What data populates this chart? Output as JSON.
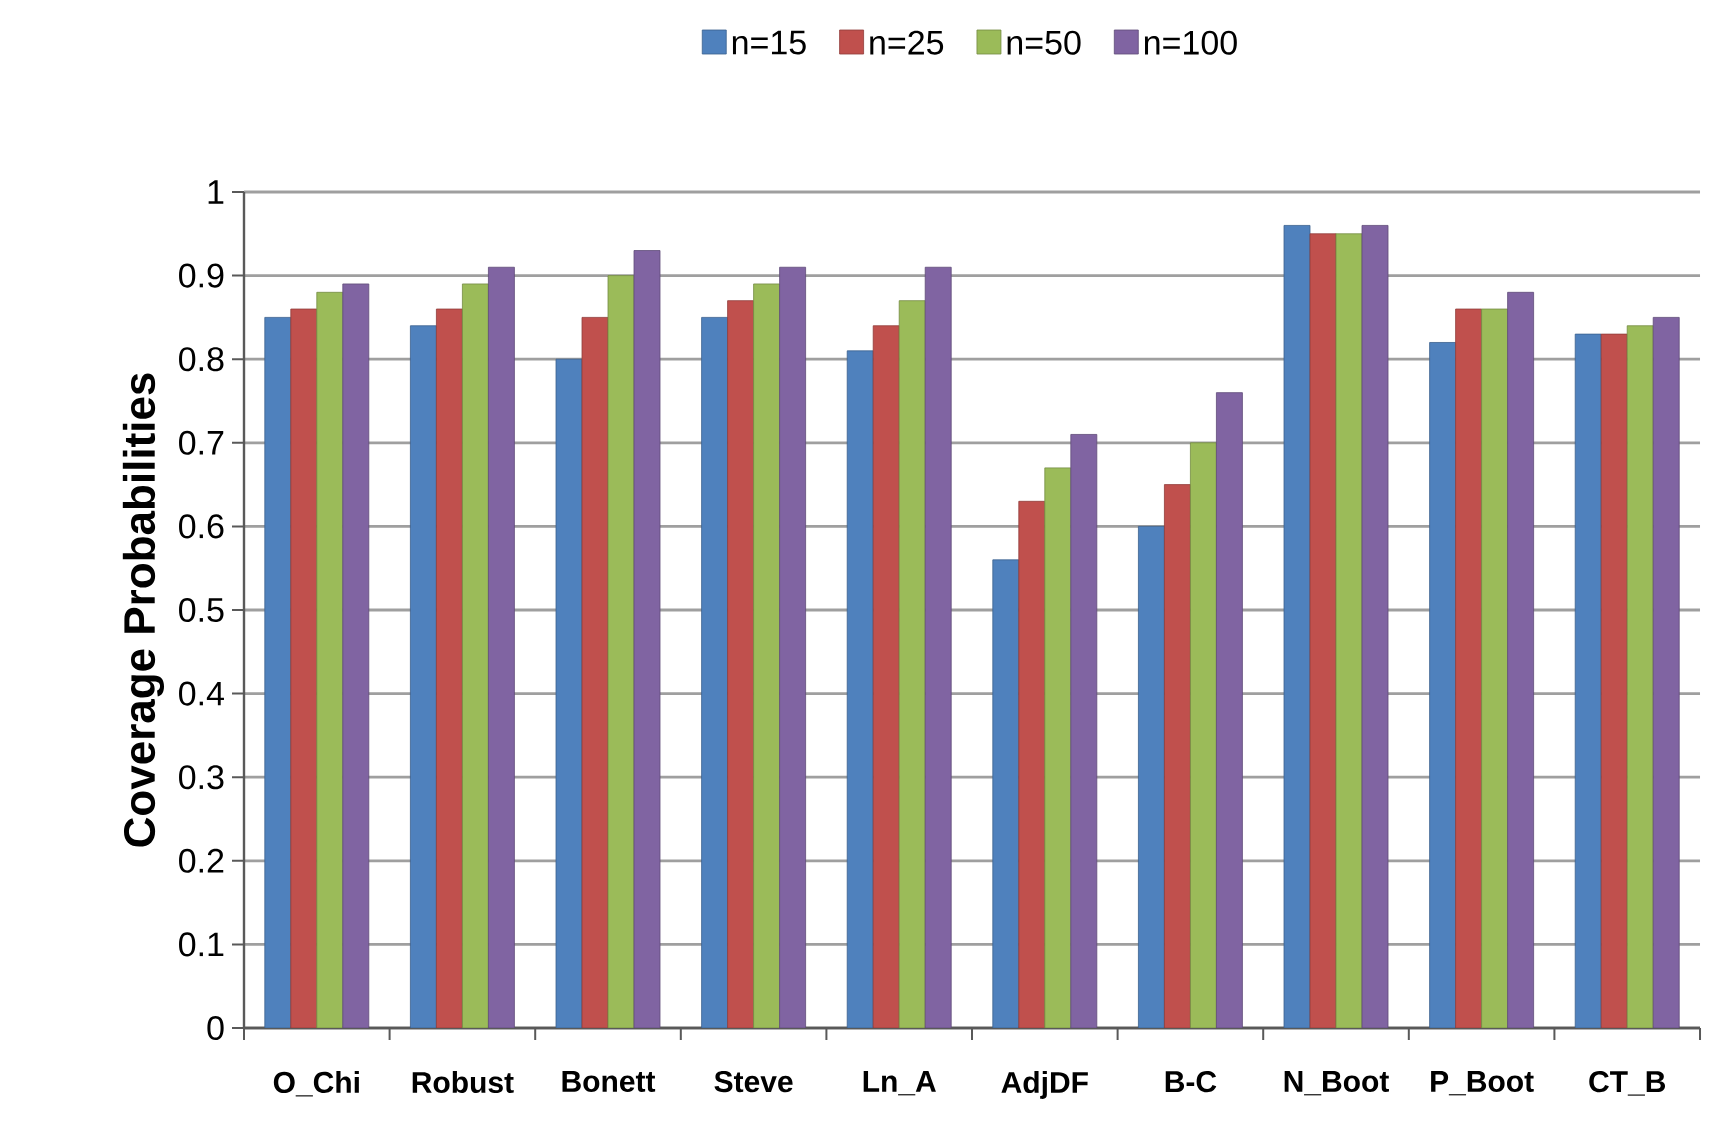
{
  "chart_data": {
    "type": "bar",
    "ylabel": "Coverage Probabilities",
    "categories": [
      "O_Chi",
      "Robust",
      "Bonett",
      "Steve",
      "Ln_A",
      "AdjDF",
      "B-C",
      "N_Boot",
      "P_Boot",
      "CT_B"
    ],
    "series": [
      {
        "name": "n=15",
        "color": "#4f81bd",
        "values": [
          0.85,
          0.84,
          0.8,
          0.85,
          0.81,
          0.56,
          0.6,
          0.96,
          0.82,
          0.83
        ]
      },
      {
        "name": "n=25",
        "color": "#c0504d",
        "values": [
          0.86,
          0.86,
          0.85,
          0.87,
          0.84,
          0.63,
          0.65,
          0.95,
          0.86,
          0.83
        ]
      },
      {
        "name": "n=50",
        "color": "#9bbb59",
        "values": [
          0.88,
          0.89,
          0.9,
          0.89,
          0.87,
          0.67,
          0.7,
          0.95,
          0.86,
          0.84
        ]
      },
      {
        "name": "n=100",
        "color": "#8064a2",
        "values": [
          0.89,
          0.91,
          0.93,
          0.91,
          0.91,
          0.71,
          0.76,
          0.96,
          0.88,
          0.85
        ]
      }
    ],
    "ylim": [
      0,
      1
    ],
    "yticks": [
      0,
      0.1,
      0.2,
      0.3,
      0.4,
      0.5,
      0.6,
      0.7,
      0.8,
      0.9,
      1
    ],
    "grid": "y",
    "legend": "top"
  }
}
